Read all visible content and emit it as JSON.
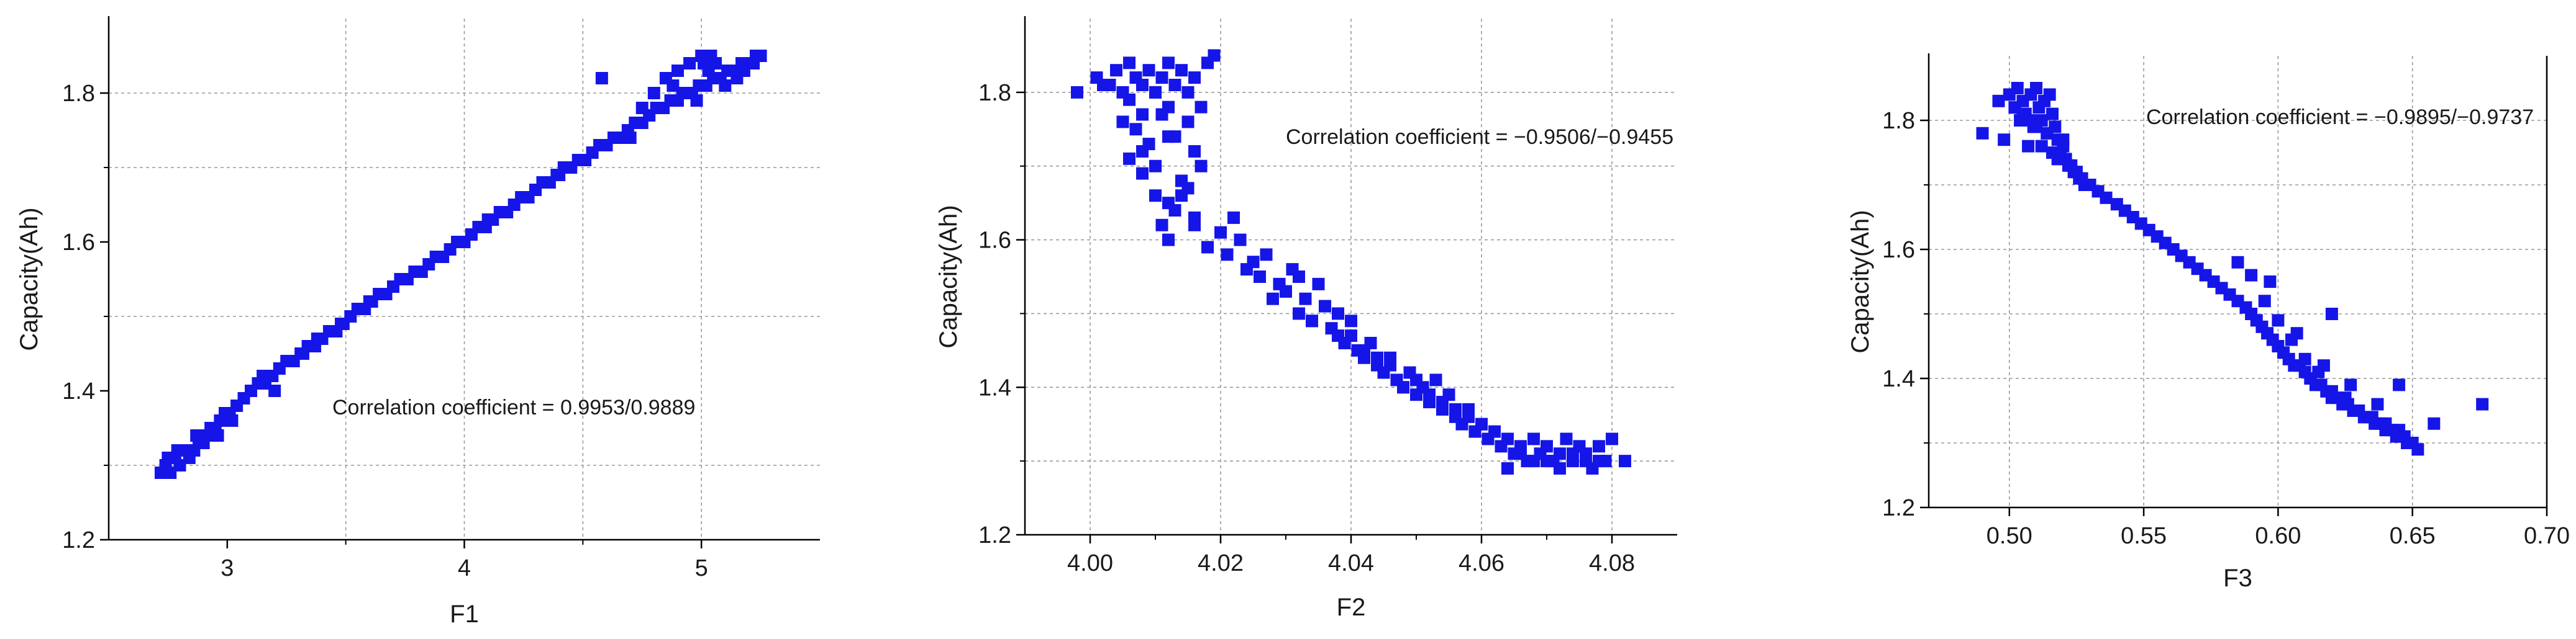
{
  "chart_data": [
    {
      "type": "scatter",
      "xlabel": "F1",
      "ylabel": "Capacity(Ah)",
      "xlim": [
        2.5,
        5.5
      ],
      "ylim": [
        1.2,
        1.9
      ],
      "xticks": [
        3,
        4,
        5
      ],
      "yticks": [
        1.2,
        1.4,
        1.6,
        1.8
      ],
      "xtick_labels": [
        "3",
        "4",
        "5"
      ],
      "ytick_labels": [
        "1.2",
        "1.4",
        "1.6",
        "1.8"
      ],
      "annotation": "Correlation coefficient = 0.9953/0.9889",
      "grid": true,
      "x": [
        2.72,
        2.74,
        2.76,
        2.78,
        2.8,
        2.82,
        2.84,
        2.86,
        2.88,
        2.9,
        2.75,
        2.79,
        2.83,
        2.87,
        2.91,
        2.93,
        2.95,
        2.97,
        2.99,
        3.01,
        3.04,
        3.07,
        3.1,
        3.13,
        3.16,
        3.19,
        3.22,
        3.25,
        3.28,
        3.31,
        3.34,
        3.37,
        3.4,
        3.43,
        3.46,
        3.49,
        3.52,
        3.55,
        3.58,
        3.61,
        3.64,
        3.67,
        3.7,
        3.73,
        3.76,
        3.79,
        3.82,
        3.85,
        3.88,
        3.91,
        3.94,
        3.97,
        4.0,
        4.03,
        4.06,
        4.09,
        4.12,
        4.15,
        4.18,
        4.21,
        4.24,
        4.27,
        4.3,
        4.33,
        4.36,
        4.39,
        4.42,
        4.45,
        4.48,
        4.51,
        4.54,
        4.57,
        4.6,
        4.63,
        4.66,
        4.69,
        4.72,
        4.75,
        4.78,
        4.81,
        4.84,
        4.87,
        4.9,
        4.93,
        4.96,
        4.99,
        5.02,
        5.05,
        5.08,
        5.11,
        5.14,
        5.17,
        5.2,
        5.23,
        5.25,
        4.8,
        4.85,
        4.9,
        4.95,
        5.0,
        5.03,
        5.06,
        4.58,
        4.75,
        4.88,
        4.92,
        4.98,
        5.01,
        5.04,
        5.1,
        5.15,
        5.18,
        5.22,
        3.15,
        3.32,
        3.48,
        2.96,
        3.02,
        3.2,
        3.38,
        3.6,
        3.8,
        4.1,
        4.4,
        4.7
      ],
      "y": [
        1.29,
        1.3,
        1.29,
        1.31,
        1.3,
        1.32,
        1.31,
        1.32,
        1.33,
        1.33,
        1.31,
        1.32,
        1.32,
        1.34,
        1.34,
        1.35,
        1.35,
        1.36,
        1.37,
        1.37,
        1.38,
        1.39,
        1.4,
        1.41,
        1.41,
        1.42,
        1.43,
        1.44,
        1.44,
        1.45,
        1.46,
        1.46,
        1.47,
        1.48,
        1.48,
        1.49,
        1.5,
        1.51,
        1.51,
        1.52,
        1.53,
        1.53,
        1.54,
        1.55,
        1.55,
        1.56,
        1.56,
        1.57,
        1.58,
        1.58,
        1.59,
        1.6,
        1.6,
        1.61,
        1.62,
        1.62,
        1.63,
        1.64,
        1.64,
        1.65,
        1.66,
        1.66,
        1.67,
        1.68,
        1.68,
        1.69,
        1.7,
        1.7,
        1.71,
        1.71,
        1.72,
        1.73,
        1.73,
        1.74,
        1.74,
        1.75,
        1.76,
        1.76,
        1.77,
        1.78,
        1.78,
        1.79,
        1.79,
        1.8,
        1.8,
        1.81,
        1.81,
        1.82,
        1.82,
        1.83,
        1.83,
        1.84,
        1.84,
        1.85,
        1.85,
        1.8,
        1.82,
        1.83,
        1.84,
        1.85,
        1.83,
        1.84,
        1.82,
        1.78,
        1.81,
        1.8,
        1.79,
        1.84,
        1.85,
        1.81,
        1.82,
        1.83,
        1.84,
        1.42,
        1.45,
        1.49,
        1.34,
        1.36,
        1.4,
        1.47,
        1.52,
        1.56,
        1.63,
        1.69,
        1.74
      ]
    },
    {
      "type": "scatter",
      "xlabel": "F2",
      "ylabel": "Capacity(Ah)",
      "xlim": [
        3.99,
        4.09
      ],
      "ylim": [
        1.2,
        1.9
      ],
      "xticks": [
        4.0,
        4.02,
        4.04,
        4.06,
        4.08
      ],
      "yticks": [
        1.2,
        1.4,
        1.6,
        1.8
      ],
      "xtick_labels": [
        "4.00",
        "4.02",
        "4.04",
        "4.06",
        "4.08"
      ],
      "ytick_labels": [
        "1.2",
        "1.4",
        "1.6",
        "1.8"
      ],
      "annotation": "Correlation coefficient = −0.9506/−0.9455",
      "grid": true,
      "x": [
        3.998,
        4.001,
        4.003,
        4.004,
        4.005,
        4.006,
        4.007,
        4.008,
        4.009,
        4.01,
        4.011,
        4.012,
        4.013,
        4.014,
        4.015,
        4.016,
        4.017,
        4.018,
        4.019,
        4.002,
        4.006,
        4.008,
        4.01,
        4.012,
        4.005,
        4.007,
        4.009,
        4.011,
        4.013,
        4.015,
        4.006,
        4.008,
        4.01,
        4.012,
        4.014,
        4.016,
        4.008,
        4.01,
        4.012,
        4.014,
        4.016,
        4.011,
        4.013,
        4.015,
        4.017,
        4.012,
        4.014,
        4.016,
        4.018,
        4.02,
        4.021,
        4.022,
        4.023,
        4.024,
        4.025,
        4.026,
        4.027,
        4.028,
        4.029,
        4.03,
        4.031,
        4.032,
        4.033,
        4.034,
        4.035,
        4.036,
        4.037,
        4.038,
        4.039,
        4.04,
        4.041,
        4.042,
        4.043,
        4.044,
        4.045,
        4.046,
        4.047,
        4.048,
        4.049,
        4.05,
        4.051,
        4.052,
        4.053,
        4.054,
        4.055,
        4.056,
        4.057,
        4.058,
        4.059,
        4.06,
        4.061,
        4.062,
        4.063,
        4.064,
        4.065,
        4.066,
        4.067,
        4.068,
        4.069,
        4.07,
        4.071,
        4.072,
        4.073,
        4.074,
        4.075,
        4.076,
        4.077,
        4.078,
        4.079,
        4.08,
        4.082,
        4.03,
        4.034,
        4.038,
        4.042,
        4.046,
        4.05,
        4.054,
        4.058,
        4.064,
        4.068,
        4.072,
        4.076,
        4.032,
        4.036,
        4.04,
        4.044,
        4.048,
        4.052,
        4.056,
        4.06,
        4.066,
        4.07,
        4.074,
        4.078
      ],
      "y": [
        1.8,
        1.82,
        1.81,
        1.83,
        1.8,
        1.84,
        1.82,
        1.81,
        1.83,
        1.8,
        1.82,
        1.84,
        1.81,
        1.83,
        1.8,
        1.82,
        1.78,
        1.84,
        1.85,
        1.81,
        1.79,
        1.77,
        1.8,
        1.78,
        1.76,
        1.75,
        1.73,
        1.77,
        1.74,
        1.76,
        1.71,
        1.72,
        1.7,
        1.74,
        1.68,
        1.72,
        1.69,
        1.66,
        1.65,
        1.68,
        1.63,
        1.62,
        1.64,
        1.67,
        1.7,
        1.6,
        1.66,
        1.62,
        1.59,
        1.61,
        1.58,
        1.63,
        1.6,
        1.56,
        1.57,
        1.55,
        1.58,
        1.52,
        1.54,
        1.53,
        1.56,
        1.5,
        1.52,
        1.49,
        1.54,
        1.51,
        1.48,
        1.5,
        1.46,
        1.47,
        1.45,
        1.44,
        1.46,
        1.43,
        1.42,
        1.44,
        1.41,
        1.4,
        1.42,
        1.39,
        1.4,
        1.38,
        1.41,
        1.37,
        1.39,
        1.36,
        1.35,
        1.37,
        1.34,
        1.35,
        1.33,
        1.34,
        1.32,
        1.33,
        1.31,
        1.32,
        1.3,
        1.33,
        1.31,
        1.32,
        1.3,
        1.31,
        1.33,
        1.3,
        1.32,
        1.31,
        1.29,
        1.32,
        1.3,
        1.33,
        1.3,
        1.53,
        1.49,
        1.47,
        1.45,
        1.43,
        1.41,
        1.38,
        1.36,
        1.29,
        1.3,
        1.29,
        1.3,
        1.55,
        1.51,
        1.49,
        1.44,
        1.4,
        1.39,
        1.37,
        1.35,
        1.31,
        1.3,
        1.31,
        1.3
      ]
    },
    {
      "type": "scatter",
      "xlabel": "F3",
      "ylabel": "Capacity(Ah)",
      "xlim": [
        0.47,
        0.7
      ],
      "ylim": [
        1.2,
        1.9
      ],
      "xticks": [
        0.5,
        0.55,
        0.6,
        0.65,
        0.7
      ],
      "yticks": [
        1.2,
        1.4,
        1.6,
        1.8
      ],
      "xtick_labels": [
        "0.50",
        "0.55",
        "0.60",
        "0.65",
        "0.70"
      ],
      "ytick_labels": [
        "1.2",
        "1.4",
        "1.6",
        "1.8"
      ],
      "annotation": "Correlation coefficient = −0.9895/−0.9737",
      "grid": true,
      "x": [
        0.49,
        0.496,
        0.498,
        0.5,
        0.502,
        0.503,
        0.504,
        0.505,
        0.506,
        0.507,
        0.508,
        0.509,
        0.51,
        0.511,
        0.512,
        0.513,
        0.514,
        0.515,
        0.516,
        0.517,
        0.518,
        0.519,
        0.52,
        0.521,
        0.522,
        0.524,
        0.526,
        0.528,
        0.502,
        0.505,
        0.508,
        0.51,
        0.512,
        0.514,
        0.516,
        0.518,
        0.52,
        0.523,
        0.525,
        0.527,
        0.53,
        0.533,
        0.536,
        0.54,
        0.543,
        0.546,
        0.549,
        0.552,
        0.555,
        0.558,
        0.561,
        0.564,
        0.567,
        0.57,
        0.573,
        0.576,
        0.579,
        0.582,
        0.585,
        0.588,
        0.59,
        0.592,
        0.594,
        0.596,
        0.598,
        0.6,
        0.602,
        0.604,
        0.606,
        0.608,
        0.61,
        0.612,
        0.614,
        0.616,
        0.618,
        0.62,
        0.622,
        0.624,
        0.626,
        0.628,
        0.63,
        0.632,
        0.634,
        0.636,
        0.638,
        0.64,
        0.642,
        0.644,
        0.646,
        0.648,
        0.65,
        0.652,
        0.658,
        0.676,
        0.585,
        0.59,
        0.595,
        0.6,
        0.605,
        0.61,
        0.615,
        0.62,
        0.625,
        0.63,
        0.635,
        0.64,
        0.645,
        0.597,
        0.607,
        0.617,
        0.627,
        0.637,
        0.647,
        0.62,
        0.645
      ],
      "y": [
        1.78,
        1.83,
        1.77,
        1.84,
        1.82,
        1.85,
        1.8,
        1.83,
        1.81,
        1.76,
        1.84,
        1.79,
        1.85,
        1.82,
        1.8,
        1.83,
        1.78,
        1.84,
        1.81,
        1.79,
        1.77,
        1.75,
        1.76,
        1.74,
        1.73,
        1.72,
        1.71,
        1.7,
        1.82,
        1.81,
        1.8,
        1.79,
        1.76,
        1.78,
        1.75,
        1.74,
        1.77,
        1.73,
        1.72,
        1.71,
        1.7,
        1.69,
        1.68,
        1.67,
        1.66,
        1.65,
        1.64,
        1.63,
        1.62,
        1.61,
        1.6,
        1.59,
        1.58,
        1.57,
        1.56,
        1.55,
        1.54,
        1.53,
        1.52,
        1.51,
        1.5,
        1.49,
        1.48,
        1.47,
        1.46,
        1.45,
        1.44,
        1.43,
        1.42,
        1.42,
        1.41,
        1.4,
        1.39,
        1.39,
        1.38,
        1.37,
        1.37,
        1.36,
        1.36,
        1.35,
        1.35,
        1.34,
        1.34,
        1.33,
        1.33,
        1.32,
        1.32,
        1.31,
        1.31,
        1.3,
        1.3,
        1.29,
        1.33,
        1.36,
        1.58,
        1.56,
        1.52,
        1.49,
        1.46,
        1.43,
        1.41,
        1.38,
        1.37,
        1.35,
        1.34,
        1.33,
        1.32,
        1.55,
        1.47,
        1.42,
        1.39,
        1.36,
        1.31,
        1.5,
        1.39
      ]
    }
  ]
}
